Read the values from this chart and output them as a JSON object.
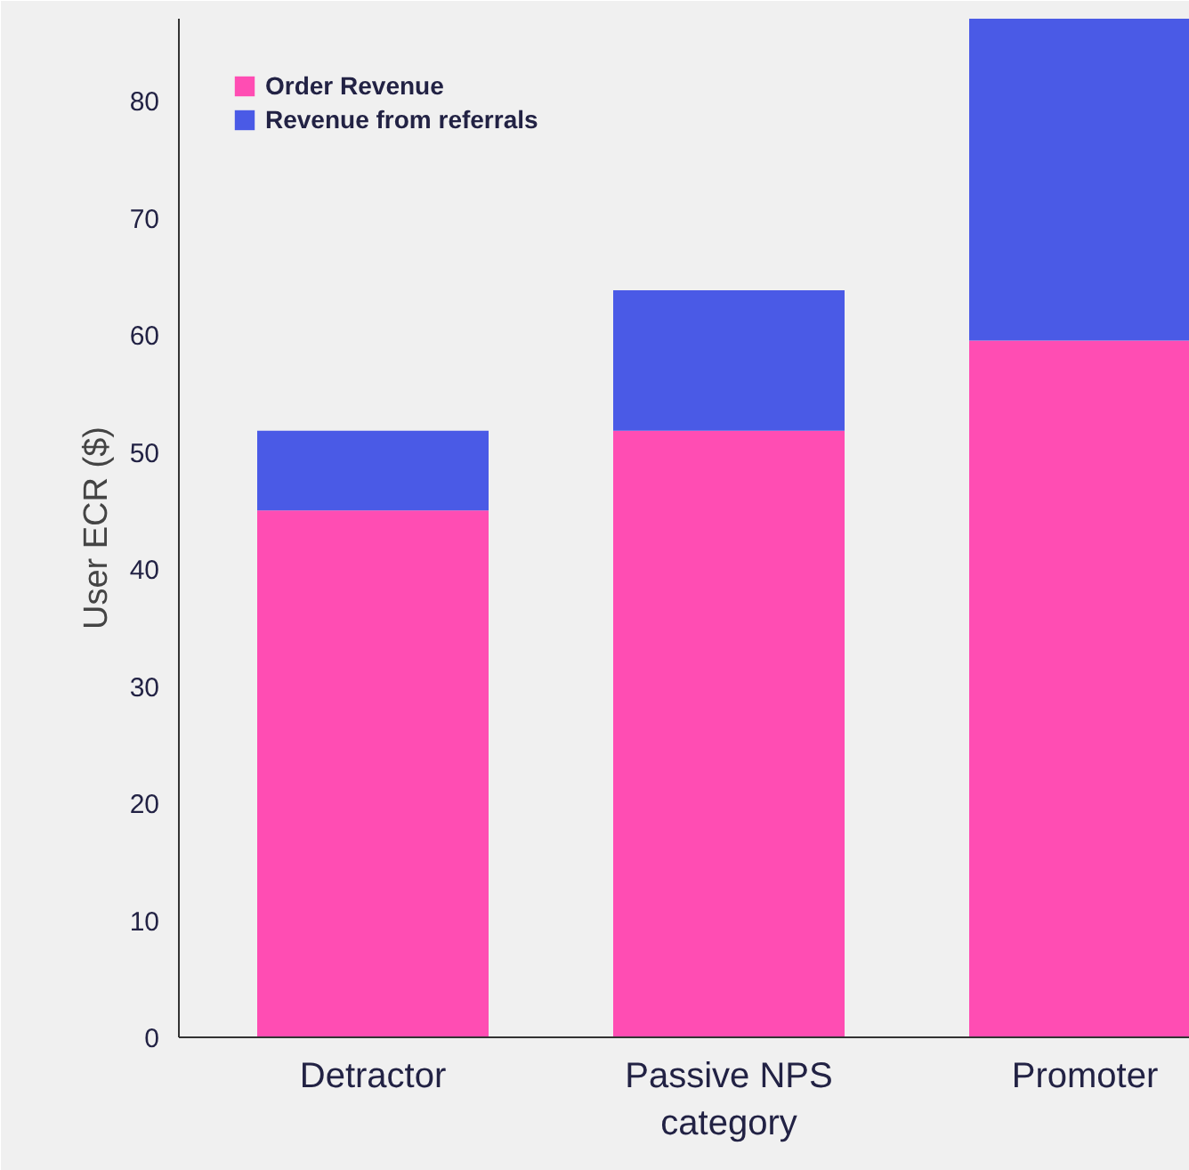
{
  "chart_data": {
    "type": "bar",
    "stacked": true,
    "ylabel": "User ECR ($)",
    "categories": [
      "Detractor",
      "Passive NPS\ncategory",
      "Promoter"
    ],
    "series": [
      {
        "name": "Order Revenue",
        "color": "#ff4db3",
        "values": [
          45.0,
          51.8,
          59.5
        ]
      },
      {
        "name": "Revenue from referrals",
        "color": "#4a5ae6",
        "values": [
          6.8,
          12.0,
          27.5
        ]
      }
    ],
    "ylim": [
      0,
      87
    ],
    "yticks": [
      0,
      10,
      20,
      30,
      40,
      50,
      60,
      70,
      80
    ],
    "grid": false,
    "legend": "top left"
  }
}
